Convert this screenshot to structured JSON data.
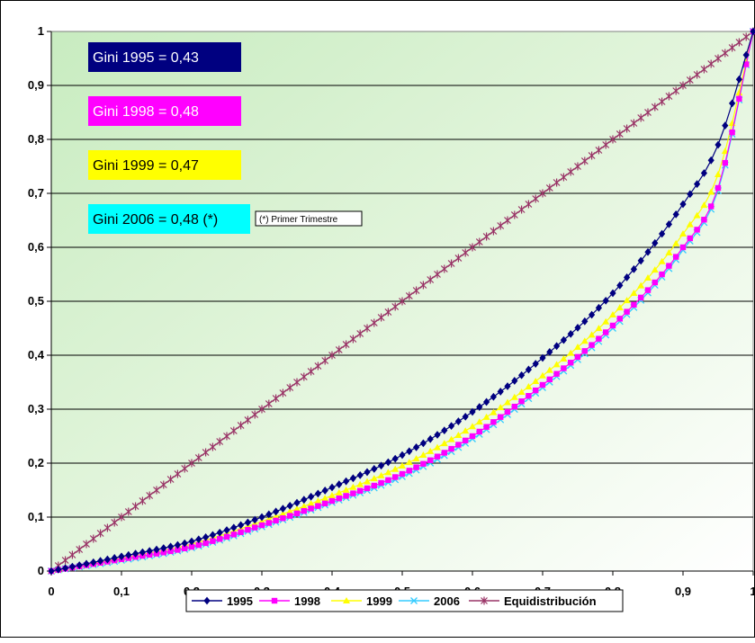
{
  "chart_data": {
    "type": "line",
    "title": "",
    "xlabel": "",
    "ylabel": "",
    "xlim": [
      0,
      1
    ],
    "ylim": [
      0,
      1
    ],
    "grid": "horizontal",
    "legend_position": "bottom",
    "x_ticks": [
      "0",
      "0,1",
      "0,2",
      "0,3",
      "0,4",
      "0,5",
      "0,6",
      "0,7",
      "0,8",
      "0,9",
      "1"
    ],
    "y_ticks": [
      "0",
      "0,1",
      "0,2",
      "0,3",
      "0,4",
      "0,5",
      "0,6",
      "0,7",
      "0,8",
      "0,9",
      "1"
    ],
    "x": [
      0,
      0.1,
      0.2,
      0.3,
      0.4,
      0.5,
      0.6,
      0.7,
      0.8,
      0.9,
      0.95,
      1.0
    ],
    "series": [
      {
        "name": "1995",
        "color": "#000080",
        "marker": "diamond",
        "values": [
          0,
          0.027,
          0.055,
          0.1,
          0.155,
          0.215,
          0.295,
          0.395,
          0.515,
          0.68,
          0.79,
          1.0
        ]
      },
      {
        "name": "1998",
        "color": "#ff00ff",
        "marker": "square",
        "values": [
          0,
          0.022,
          0.045,
          0.085,
          0.13,
          0.18,
          0.25,
          0.345,
          0.455,
          0.6,
          0.71,
          1.0
        ]
      },
      {
        "name": "1999",
        "color": "#ffff00",
        "marker": "triangle",
        "values": [
          0,
          0.024,
          0.05,
          0.092,
          0.14,
          0.195,
          0.268,
          0.362,
          0.475,
          0.625,
          0.735,
          1.0
        ]
      },
      {
        "name": "2006",
        "color": "#33ccff",
        "marker": "x",
        "values": [
          0,
          0.02,
          0.043,
          0.082,
          0.127,
          0.175,
          0.245,
          0.34,
          0.45,
          0.595,
          0.705,
          1.0
        ]
      },
      {
        "name": "Equidistribución",
        "color": "#993366",
        "marker": "star",
        "values": [
          0,
          0.1,
          0.2,
          0.3,
          0.4,
          0.5,
          0.6,
          0.7,
          0.8,
          0.9,
          0.95,
          1.0
        ]
      }
    ],
    "annotations": [
      {
        "text": "Gini 1995 = 0,43",
        "bg": "#000080",
        "fg": "#ffffff"
      },
      {
        "text": "Gini 1998 = 0,48",
        "bg": "#ff00ff",
        "fg": "#ffffff"
      },
      {
        "text": "Gini 1999 = 0,47",
        "bg": "#ffff00",
        "fg": "#000000"
      },
      {
        "text": "Gini 2006 = 0,48 (*)",
        "bg": "#00ffff",
        "fg": "#000000"
      }
    ],
    "footnote": "(*) Primer Trimestre"
  }
}
